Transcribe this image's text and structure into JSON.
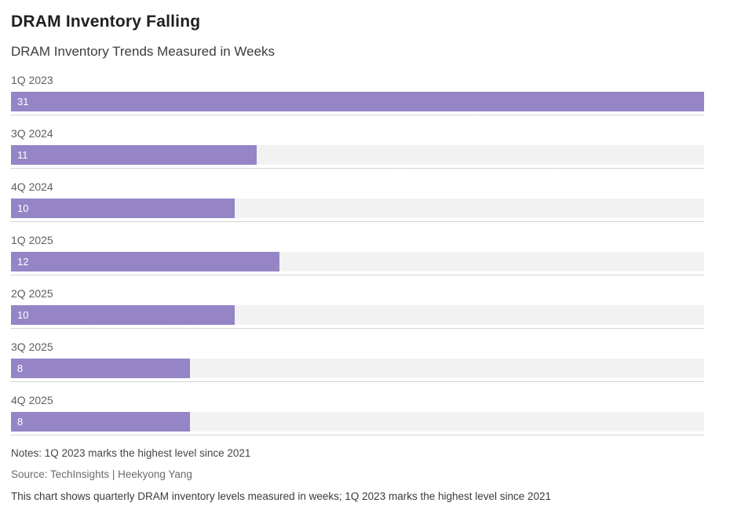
{
  "header": {
    "title": "DRAM Inventory Falling",
    "subtitle": "DRAM Inventory Trends Measured in Weeks"
  },
  "chart_data": {
    "type": "bar",
    "orientation": "horizontal",
    "title": "DRAM Inventory Falling",
    "subtitle": "DRAM Inventory Trends Measured in Weeks",
    "unit": "weeks",
    "categories": [
      "1Q 2023",
      "3Q 2024",
      "4Q 2024",
      "1Q 2025",
      "2Q 2025",
      "3Q 2025",
      "4Q 2025"
    ],
    "values": [
      31,
      11,
      10,
      12,
      10,
      8,
      8
    ],
    "xlim": [
      0,
      31
    ],
    "grid": "dotted-row-separators",
    "legend": "none",
    "bar_color": "#9585c6",
    "track_color": "#f2f2f2",
    "value_label_color": "#ffffff"
  },
  "footer": {
    "notes": "Notes: 1Q 2023 marks the highest level since 2021",
    "source": "Source: TechInsights | Heekyong Yang",
    "caption": "This chart shows quarterly DRAM inventory levels measured in weeks; 1Q 2023 marks the highest level since 2021"
  }
}
